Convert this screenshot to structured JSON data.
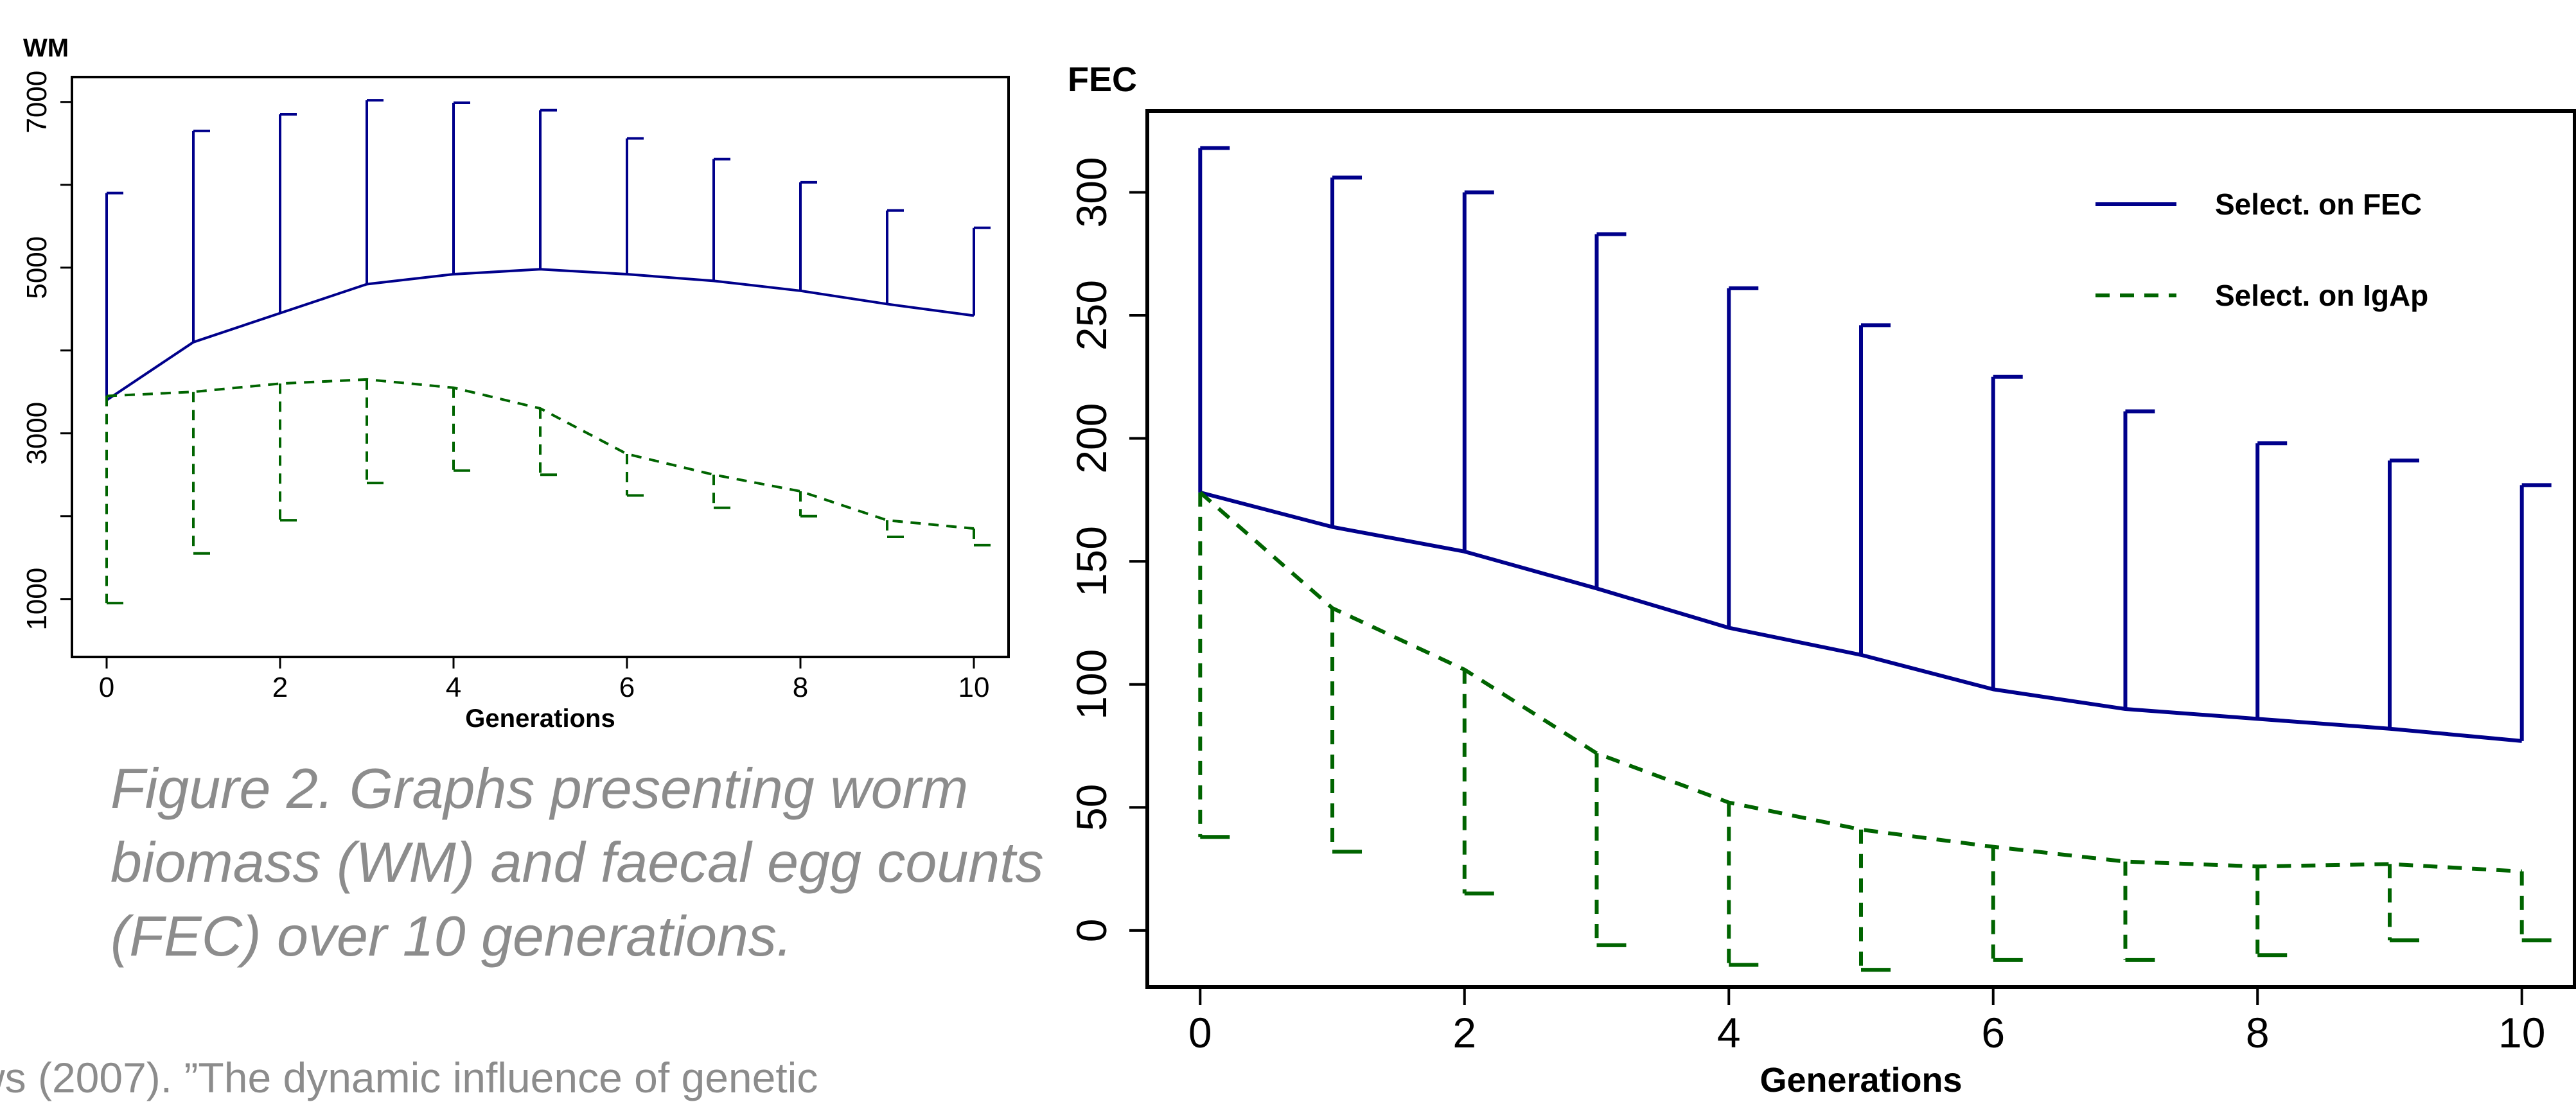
{
  "caption": {
    "lines": [
      "Figure 2. Graphs presenting worm",
      "biomass (WM) and faecal egg counts",
      "(FEC) over 10 generations."
    ]
  },
  "reference_text": "ws (2007). ”The dynamic influence of genetic",
  "colors": {
    "fec_line": "#00008b",
    "igap_line": "#006400",
    "axis": "#000000",
    "caption": "#8c8c8c"
  },
  "chart_data": [
    {
      "type": "line",
      "title": "WM",
      "xlabel": "Generations",
      "ylabel": "WM",
      "xlim": [
        -0.4,
        10.4
      ],
      "ylim": [
        300,
        7300
      ],
      "xticks": [
        0,
        2,
        4,
        6,
        8,
        10
      ],
      "yticks": [
        1000,
        3000,
        5000,
        7000
      ],
      "grid": false,
      "legend": "none",
      "x": [
        0,
        1,
        2,
        3,
        4,
        5,
        6,
        7,
        8,
        9,
        10
      ],
      "series": [
        {
          "color": "#00008b",
          "style": "solid",
          "errorbar": "upper",
          "values": [
            3400,
            4100,
            4450,
            4800,
            4920,
            4980,
            4920,
            4840,
            4720,
            4560,
            4420
          ],
          "upper": [
            5900,
            6650,
            6850,
            7020,
            6990,
            6900,
            6560,
            6310,
            6030,
            5690,
            5480
          ]
        },
        {
          "color": "#006400",
          "style": "dashed",
          "errorbar": "lower",
          "values": [
            3450,
            3500,
            3600,
            3650,
            3550,
            3300,
            2750,
            2500,
            2300,
            1950,
            1850
          ],
          "lower": [
            950,
            1550,
            1950,
            2400,
            2550,
            2500,
            2250,
            2100,
            2000,
            1750,
            1650
          ]
        }
      ]
    },
    {
      "type": "line",
      "title": "FEC",
      "xlabel": "Generations",
      "ylabel": "FEC",
      "xlim": [
        -0.4,
        10.4
      ],
      "ylim": [
        -23,
        333
      ],
      "xticks": [
        0,
        2,
        4,
        6,
        8,
        10
      ],
      "yticks": [
        0,
        50,
        100,
        150,
        200,
        250,
        300
      ],
      "grid": false,
      "legend": "top-right",
      "x": [
        0,
        1,
        2,
        3,
        4,
        5,
        6,
        7,
        8,
        9,
        10
      ],
      "series": [
        {
          "name": "Select. on FEC",
          "color": "#00008b",
          "style": "solid",
          "errorbar": "upper",
          "values": [
            178,
            164,
            154,
            139,
            123,
            112,
            98,
            90,
            86,
            82,
            77
          ],
          "upper": [
            318,
            306,
            300,
            283,
            261,
            246,
            225,
            211,
            198,
            191,
            181
          ]
        },
        {
          "name": "Select. on IgAp",
          "color": "#006400",
          "style": "dashed",
          "errorbar": "lower",
          "values": [
            178,
            131,
            106,
            72,
            52,
            41,
            34,
            28,
            26,
            27,
            24
          ],
          "lower": [
            38,
            32,
            15,
            -6,
            -14,
            -16,
            -12,
            -12,
            -10,
            -4,
            -4
          ]
        }
      ]
    }
  ]
}
